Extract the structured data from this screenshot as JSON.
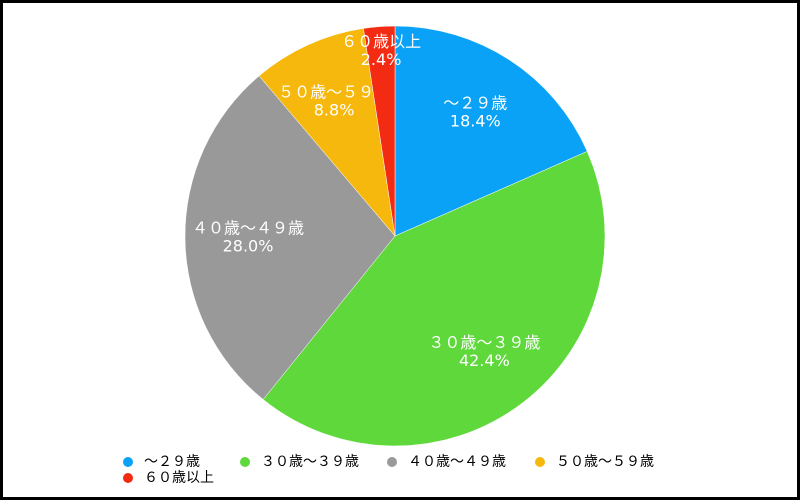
{
  "chart_data": {
    "type": "pie",
    "categories": [
      "～２９歳",
      "３０歳～３９歳",
      "４０歳～４９歳",
      "５０歳～５９歳",
      "６０歳以上"
    ],
    "values": [
      18.4,
      42.4,
      28.0,
      8.8,
      2.4
    ],
    "value_labels": [
      "18.4%",
      "42.4%",
      "28.0%",
      "8.8%",
      "2.4%"
    ],
    "colors": [
      "#0aa2f6",
      "#5fd83b",
      "#999999",
      "#f6b80c",
      "#f32b13"
    ],
    "legend": "bottom"
  }
}
